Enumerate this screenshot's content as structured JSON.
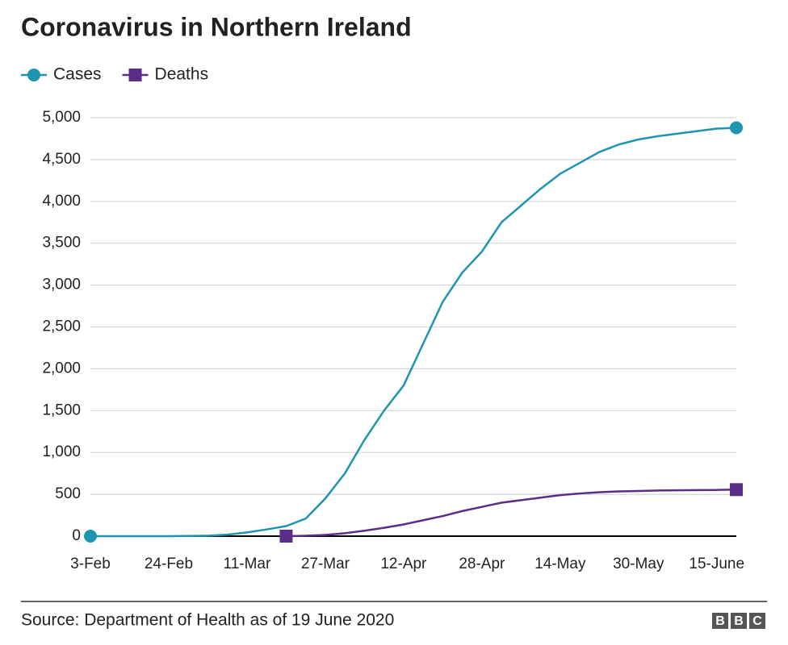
{
  "chart_data": {
    "type": "line",
    "title": "Coronavirus in Northern Ireland",
    "source": "Source: Department of Health as of 19 June 2020",
    "logo": [
      "B",
      "B",
      "C"
    ],
    "categories": [
      "3-Feb",
      null,
      null,
      null,
      "24-Feb",
      null,
      null,
      null,
      "11-Mar",
      null,
      null,
      null,
      "27-Mar",
      null,
      null,
      null,
      "12-Apr",
      null,
      null,
      null,
      "28-Apr",
      null,
      null,
      null,
      "14-May",
      null,
      null,
      null,
      "30-May",
      null,
      null,
      null,
      "15-June",
      null
    ],
    "series": [
      {
        "name": "Cases",
        "color": "#1e95ae",
        "marker": "circle",
        "values": [
          0,
          0,
          0,
          0,
          0,
          2,
          5,
          18,
          45,
          80,
          120,
          210,
          450,
          750,
          1150,
          1500,
          1800,
          2300,
          2800,
          3150,
          3400,
          3750,
          3950,
          4150,
          4330,
          4460,
          4590,
          4680,
          4740,
          4780,
          4810,
          4840,
          4870,
          4880
        ]
      },
      {
        "name": "Deaths",
        "color": "#5a2d87",
        "marker": "square",
        "values": [
          null,
          null,
          null,
          null,
          null,
          null,
          null,
          null,
          null,
          null,
          0,
          5,
          15,
          35,
          65,
          100,
          140,
          190,
          240,
          300,
          350,
          400,
          430,
          460,
          490,
          510,
          525,
          535,
          540,
          545,
          548,
          550,
          552,
          556
        ]
      }
    ],
    "ylim": [
      0,
      5000
    ],
    "yticks": [
      0,
      {
        "value": 500,
        "label": "500"
      },
      {
        "value": 1000,
        "label": "1,000"
      },
      {
        "value": 1500,
        "label": "1,500"
      },
      {
        "value": 2000,
        "label": "2,000"
      },
      {
        "value": 2500,
        "label": "2,500"
      },
      {
        "value": 3000,
        "label": "3,000"
      },
      {
        "value": 3500,
        "label": "3,500"
      },
      {
        "value": 4000,
        "label": "4,000"
      },
      {
        "value": 4500,
        "label": "4,500"
      },
      {
        "value": 5000,
        "label": "5,000"
      }
    ],
    "grid": true,
    "legend": "top-left"
  }
}
